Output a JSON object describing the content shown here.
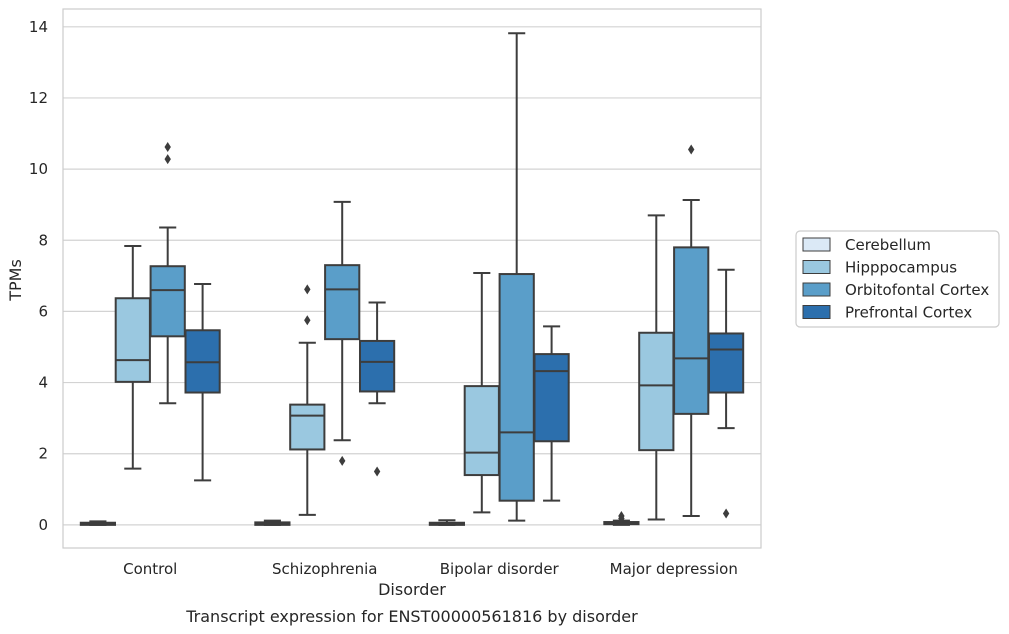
{
  "caption": "Transcript expression for ENST00000561816 by disorder",
  "chart_data": {
    "type": "boxplot",
    "xlabel": "Disorder",
    "ylabel": "TPMs",
    "ylim": [
      -0.65,
      14.5
    ],
    "yticks": [
      0,
      2,
      4,
      6,
      8,
      10,
      12,
      14
    ],
    "grid": "horizontal",
    "legend_position": "right",
    "categories": [
      "Control",
      "Schizophrenia",
      "Bipolar disorder",
      "Major depression"
    ],
    "series": [
      {
        "name": "Cerebellum",
        "color": "#dbe9f6",
        "boxes": [
          {
            "whisker_low": 0.0,
            "q1": 0.0,
            "median": 0.03,
            "q3": 0.06,
            "whisker_high": 0.1,
            "outliers": []
          },
          {
            "whisker_low": 0.0,
            "q1": 0.0,
            "median": 0.03,
            "q3": 0.07,
            "whisker_high": 0.12,
            "outliers": []
          },
          {
            "whisker_low": 0.0,
            "q1": 0.0,
            "median": 0.03,
            "q3": 0.06,
            "whisker_high": 0.13,
            "outliers": []
          },
          {
            "whisker_low": 0.0,
            "q1": 0.02,
            "median": 0.05,
            "q3": 0.08,
            "whisker_high": 0.12,
            "outliers": [
              0.18,
              0.25
            ]
          }
        ]
      },
      {
        "name": "Hipppocampus",
        "color": "#9ac8e0",
        "boxes": [
          {
            "whisker_low": 1.58,
            "q1": 4.02,
            "median": 4.63,
            "q3": 6.37,
            "whisker_high": 7.84,
            "outliers": []
          },
          {
            "whisker_low": 0.28,
            "q1": 2.12,
            "median": 3.07,
            "q3": 3.38,
            "whisker_high": 5.12,
            "outliers": [
              5.75,
              6.62
            ]
          },
          {
            "whisker_low": 0.35,
            "q1": 1.4,
            "median": 2.03,
            "q3": 3.9,
            "whisker_high": 7.08,
            "outliers": []
          },
          {
            "whisker_low": 0.15,
            "q1": 2.1,
            "median": 3.92,
            "q3": 5.4,
            "whisker_high": 8.7,
            "outliers": []
          }
        ]
      },
      {
        "name": "Orbitofontal Cortex",
        "color": "#5a9ec9",
        "boxes": [
          {
            "whisker_low": 3.42,
            "q1": 5.3,
            "median": 6.6,
            "q3": 7.27,
            "whisker_high": 8.36,
            "outliers": [
              10.28,
              10.62
            ]
          },
          {
            "whisker_low": 2.38,
            "q1": 5.22,
            "median": 6.62,
            "q3": 7.3,
            "whisker_high": 9.08,
            "outliers": [
              1.8
            ]
          },
          {
            "whisker_low": 0.12,
            "q1": 0.68,
            "median": 2.6,
            "q3": 7.05,
            "whisker_high": 13.82,
            "outliers": []
          },
          {
            "whisker_low": 0.25,
            "q1": 3.12,
            "median": 4.68,
            "q3": 7.8,
            "whisker_high": 9.13,
            "outliers": [
              10.55
            ]
          }
        ]
      },
      {
        "name": "Prefrontal Cortex",
        "color": "#2c6fad",
        "boxes": [
          {
            "whisker_low": 1.25,
            "q1": 3.72,
            "median": 4.57,
            "q3": 5.47,
            "whisker_high": 6.77,
            "outliers": []
          },
          {
            "whisker_low": 3.42,
            "q1": 3.75,
            "median": 4.58,
            "q3": 5.17,
            "whisker_high": 6.25,
            "outliers": [
              1.5
            ]
          },
          {
            "whisker_low": 0.68,
            "q1": 2.35,
            "median": 4.32,
            "q3": 4.8,
            "whisker_high": 5.58,
            "outliers": []
          },
          {
            "whisker_low": 2.72,
            "q1": 3.72,
            "median": 4.93,
            "q3": 5.38,
            "whisker_high": 7.17,
            "outliers": [
              0.32
            ]
          }
        ]
      }
    ]
  }
}
